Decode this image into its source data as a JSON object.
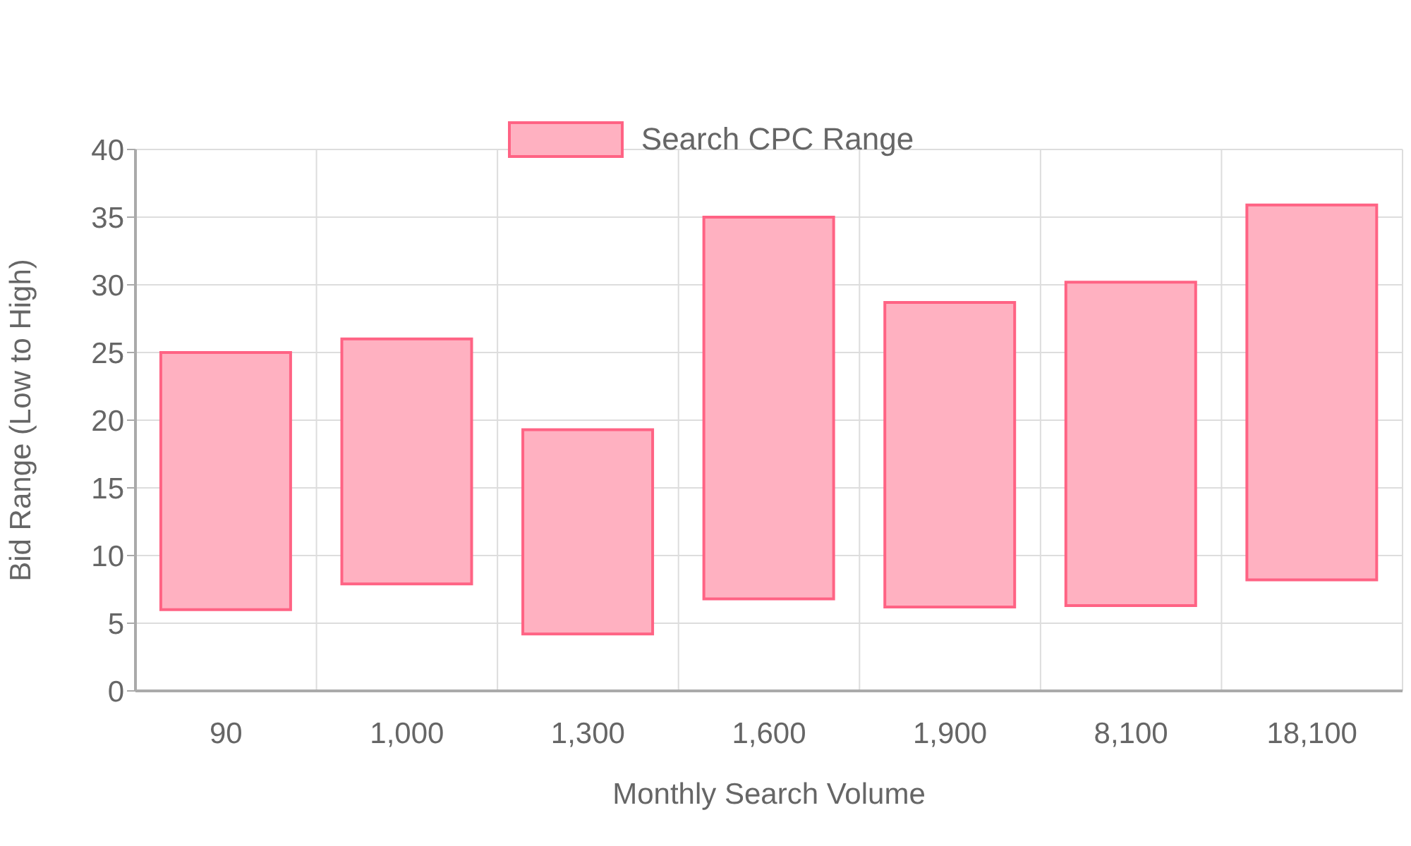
{
  "chart_data": {
    "type": "bar",
    "xlabel": "Monthly Search Volume",
    "ylabel": "Bid Range (Low to High)",
    "categories": [
      "90",
      "1,000",
      "1,300",
      "1,600",
      "1,900",
      "8,100",
      "18,100"
    ],
    "series": [
      {
        "name": "Search CPC Range",
        "color": "#ffb1c1",
        "base": [
          6,
          7.9,
          4.2,
          6.8,
          6.2,
          6.3,
          8.2
        ],
        "values": [
          19,
          18.1,
          15.1,
          28.2,
          22.5,
          23.9,
          27.7
        ]
      }
    ],
    "ylim": [
      0,
      40
    ],
    "yticks": [
      0,
      5,
      10,
      15,
      20,
      25,
      30,
      35,
      40
    ],
    "grid": true,
    "legend": "top"
  }
}
